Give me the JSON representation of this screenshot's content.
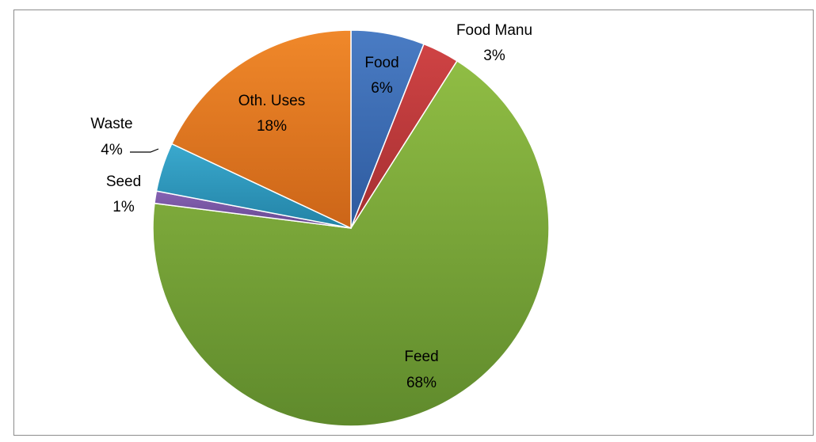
{
  "chart_data": {
    "type": "pie",
    "slices": [
      {
        "name": "Food",
        "percent_label": "6%",
        "value": 6,
        "color": "#3d6db5"
      },
      {
        "name": "Food Manu",
        "percent_label": "3%",
        "value": 3,
        "color": "#c0393b"
      },
      {
        "name": "Feed",
        "percent_label": "68%",
        "value": 68,
        "color": "#7ea53d"
      },
      {
        "name": "Seed",
        "percent_label": "1%",
        "value": 1,
        "color": "#7b58a6"
      },
      {
        "name": "Waste",
        "percent_label": "4%",
        "value": 4,
        "color": "#2f9bbf"
      },
      {
        "name": "Oth. Uses",
        "percent_label": "18%",
        "value": 18,
        "color": "#e87c23"
      }
    ],
    "start_angle": "12 o'clock",
    "direction": "clockwise",
    "legend": "none"
  }
}
